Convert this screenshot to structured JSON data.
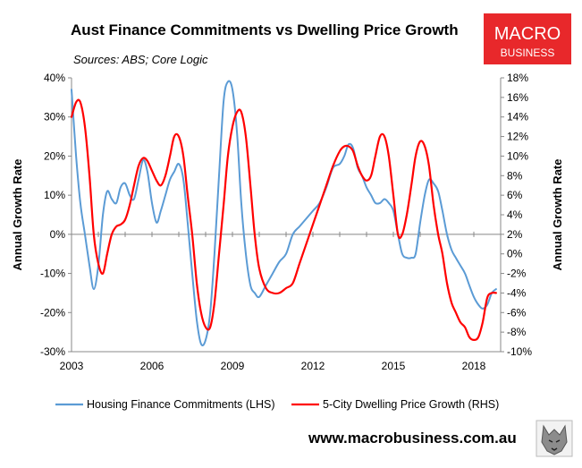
{
  "chart_data": {
    "type": "line",
    "title": "Aust Finance Commitments vs Dwelling Price Growth",
    "subtitle": "Sources: ABS; Core Logic",
    "ylabel_left": "Annual Growth Rate",
    "ylabel_right": "Annual Growth Rate",
    "ylim_left": [
      -30,
      40
    ],
    "ylim_right": [
      -10,
      18
    ],
    "yticks_left": [
      "40%",
      "30%",
      "20%",
      "10%",
      "0%",
      "-10%",
      "-20%",
      "-30%"
    ],
    "yticks_right": [
      "18%",
      "16%",
      "14%",
      "12%",
      "10%",
      "8%",
      "6%",
      "4%",
      "2%",
      "0%",
      "-2%",
      "-4%",
      "-6%",
      "-8%",
      "-10%"
    ],
    "xlim": [
      2003,
      2019
    ],
    "xticks": [
      "2003",
      "2006",
      "2009",
      "2012",
      "2015",
      "2018"
    ],
    "grid": false,
    "legend_position": "bottom",
    "series": [
      {
        "name": "Housing Finance Commitments (LHS)",
        "axis": "left",
        "color": "#5b9bd5",
        "x": [
          2003.0,
          2003.17,
          2003.33,
          2003.5,
          2003.67,
          2003.83,
          2004.0,
          2004.17,
          2004.33,
          2004.5,
          2004.67,
          2004.83,
          2005.0,
          2005.17,
          2005.33,
          2005.5,
          2005.67,
          2005.83,
          2006.0,
          2006.17,
          2006.33,
          2006.5,
          2006.67,
          2006.83,
          2007.0,
          2007.17,
          2007.33,
          2007.5,
          2007.67,
          2007.83,
          2008.0,
          2008.17,
          2008.33,
          2008.5,
          2008.67,
          2008.83,
          2009.0,
          2009.17,
          2009.33,
          2009.5,
          2009.67,
          2009.83,
          2010.0,
          2010.25,
          2010.5,
          2010.75,
          2011.0,
          2011.25,
          2011.5,
          2011.75,
          2012.0,
          2012.25,
          2012.5,
          2012.75,
          2013.0,
          2013.17,
          2013.33,
          2013.5,
          2013.67,
          2013.83,
          2014.0,
          2014.17,
          2014.33,
          2014.5,
          2014.67,
          2014.83,
          2015.0,
          2015.17,
          2015.33,
          2015.5,
          2015.67,
          2015.83,
          2016.0,
          2016.17,
          2016.33,
          2016.5,
          2016.67,
          2016.83,
          2017.0,
          2017.17,
          2017.33,
          2017.5,
          2017.67,
          2017.83,
          2018.0,
          2018.17,
          2018.33,
          2018.5,
          2018.67,
          2018.83
        ],
        "values": [
          37,
          20,
          8,
          0,
          -8,
          -14,
          -8,
          5,
          11,
          9,
          8,
          12,
          13,
          10,
          9,
          14,
          19,
          16,
          8,
          3,
          6,
          10,
          14,
          16,
          18,
          14,
          3,
          -10,
          -22,
          -28,
          -27,
          -20,
          -5,
          15,
          34,
          39,
          37,
          26,
          8,
          -5,
          -13,
          -15,
          -16,
          -13,
          -10,
          -7,
          -5,
          0,
          2,
          4,
          6,
          8,
          12,
          17,
          18,
          20,
          23,
          22,
          17,
          15,
          12,
          10,
          8,
          8,
          9,
          8,
          6,
          0,
          -5,
          -6,
          -6,
          -5,
          3,
          10,
          14,
          13,
          11,
          6,
          0,
          -4,
          -6,
          -8,
          -10,
          -13,
          -16,
          -18,
          -19,
          -18,
          -15,
          -14
        ]
      },
      {
        "name": "5-City Dwelling Price Growth (RHS)",
        "axis": "right",
        "color": "#ff0000",
        "x": [
          2003.0,
          2003.17,
          2003.33,
          2003.5,
          2003.67,
          2003.83,
          2004.0,
          2004.17,
          2004.33,
          2004.5,
          2004.67,
          2004.83,
          2005.0,
          2005.17,
          2005.33,
          2005.5,
          2005.67,
          2005.83,
          2006.0,
          2006.17,
          2006.33,
          2006.5,
          2006.67,
          2006.83,
          2007.0,
          2007.17,
          2007.33,
          2007.5,
          2007.67,
          2007.83,
          2008.0,
          2008.17,
          2008.33,
          2008.5,
          2008.67,
          2008.83,
          2009.0,
          2009.17,
          2009.33,
          2009.5,
          2009.67,
          2009.83,
          2010.0,
          2010.25,
          2010.5,
          2010.75,
          2011.0,
          2011.25,
          2011.5,
          2011.75,
          2012.0,
          2012.25,
          2012.5,
          2012.75,
          2013.0,
          2013.17,
          2013.33,
          2013.5,
          2013.67,
          2013.83,
          2014.0,
          2014.17,
          2014.33,
          2014.5,
          2014.67,
          2014.83,
          2015.0,
          2015.17,
          2015.33,
          2015.5,
          2015.67,
          2015.83,
          2016.0,
          2016.17,
          2016.33,
          2016.5,
          2016.67,
          2016.83,
          2017.0,
          2017.17,
          2017.33,
          2017.5,
          2017.67,
          2017.83,
          2018.0,
          2018.17,
          2018.33,
          2018.5,
          2018.67,
          2018.83
        ],
        "values": [
          14,
          15.5,
          15.5,
          13,
          8,
          2,
          -1,
          -2,
          0,
          2,
          2.8,
          3,
          3.5,
          5,
          7,
          9,
          9.8,
          9.5,
          8.5,
          7.5,
          7,
          8,
          10,
          12,
          12,
          10,
          6,
          2,
          -3,
          -6,
          -7.5,
          -7.5,
          -5,
          0,
          5,
          10,
          13,
          14.5,
          14.5,
          12,
          7,
          2,
          -1.5,
          -3.5,
          -4,
          -4,
          -3.5,
          -3,
          -1,
          1,
          3,
          5,
          7,
          9,
          10.5,
          11,
          11,
          10.5,
          9,
          8,
          7.5,
          8,
          10,
          12,
          12,
          10,
          6,
          2,
          2,
          4,
          7,
          10,
          11.5,
          11,
          9,
          5,
          2,
          0,
          -3,
          -5,
          -6,
          -7,
          -7.5,
          -8.5,
          -8.8,
          -8.5,
          -7,
          -4.5,
          -4,
          -4
        ]
      }
    ]
  },
  "logo": {
    "line1": "MACRO",
    "line2": "BUSINESS",
    "color": "#e8282b"
  },
  "website": "www.macrobusiness.com.au"
}
